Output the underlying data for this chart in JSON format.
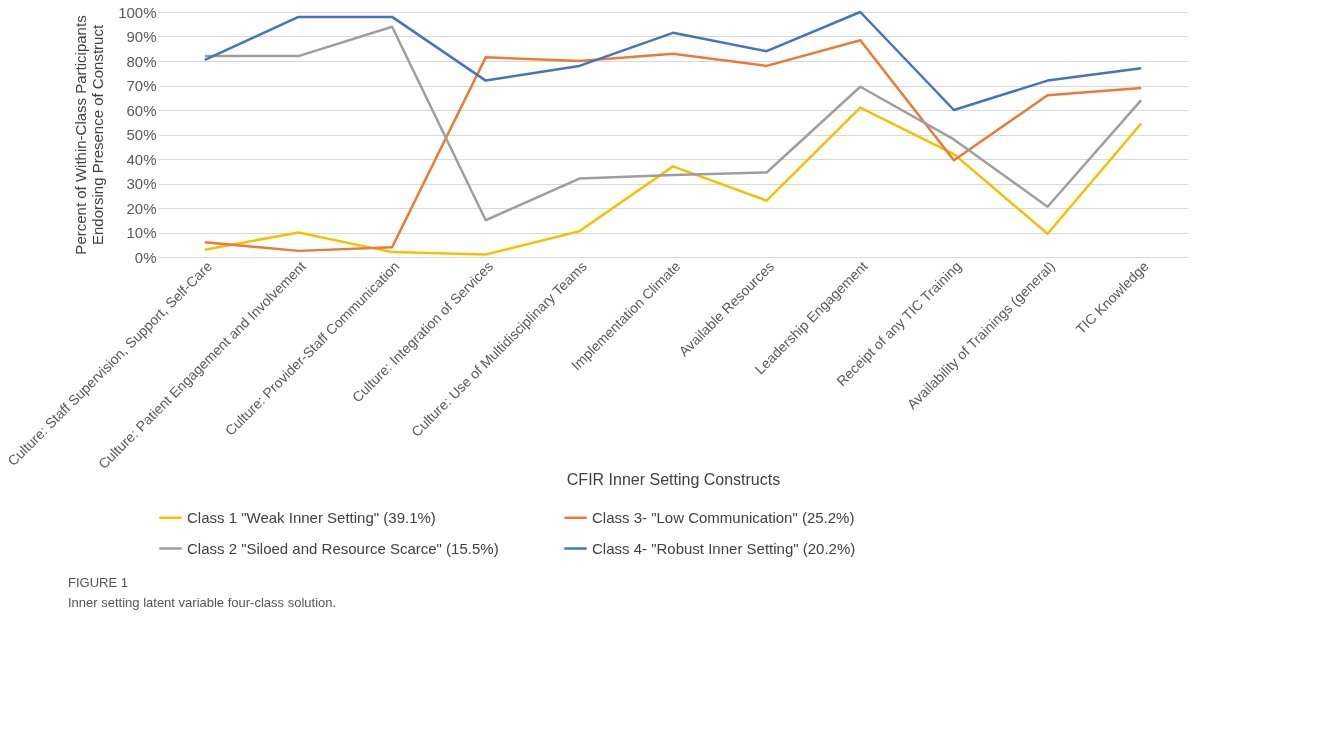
{
  "chart_data": {
    "type": "line",
    "xlabel": "CFIR Inner Setting Constructs",
    "ylabel": "Percent of Within-Class Participants Endorsing Presence of Construct",
    "categories": [
      "Culture: Staff Supervision, Support, Self-Care",
      "Culture: Patient Engagement and Involvement",
      "Culture: Provider-Staff Communication",
      "Culture: Integration of Services",
      "Culture: Use of Multidisciplinary Teams",
      "Implementation Climate",
      "Available Resources",
      "Leadership Engagement",
      "Receipt of any TIC Training",
      "Availability of Trainings (general)",
      "TIC Knowledge"
    ],
    "series": [
      {
        "name": "Class 1 \"Weak Inner Setting\" (39.1%)",
        "color": "#f5c000",
        "values": [
          3,
          10,
          2,
          1,
          10.5,
          37,
          23,
          61,
          42,
          9.5,
          54.5
        ]
      },
      {
        "name": "Class 3- \"Low Communication\" (25.2%)",
        "color": "#ea7a34",
        "values": [
          6,
          2.5,
          4,
          81.5,
          80,
          83,
          78,
          88.5,
          39.5,
          66,
          69
        ]
      },
      {
        "name": "Class 2 \"Siloed and Resource Scarce\" (15.5%)",
        "color": "#9e9e9e",
        "values": [
          82,
          82,
          94,
          15,
          32,
          33.5,
          34.5,
          69.5,
          48,
          20.5,
          64
        ]
      },
      {
        "name": "Class 4- \"Robust Inner Setting\" (20.2%)",
        "color": "#4472c4",
        "values": [
          80.5,
          98,
          98,
          72,
          78,
          91.5,
          84,
          100,
          60,
          72,
          77
        ]
      }
    ],
    "ylim": [
      0,
      100
    ],
    "yticks": [
      {
        "value": 0,
        "label": "0%"
      },
      {
        "value": 10,
        "label": "10%"
      },
      {
        "value": 20,
        "label": "20%"
      },
      {
        "value": 30,
        "label": "30%"
      },
      {
        "value": 40,
        "label": "40%"
      },
      {
        "value": 50,
        "label": "50%"
      },
      {
        "value": 60,
        "label": "60%"
      },
      {
        "value": 70,
        "label": "70%"
      },
      {
        "value": 80,
        "label": "80%"
      },
      {
        "value": 90,
        "label": "90%"
      },
      {
        "value": 100,
        "label": "100%"
      }
    ],
    "grid": "y",
    "legend": "bottom",
    "marker": "none",
    "line_style": "solid",
    "annotations": [
      "FIGURE 1",
      "Inner setting latent variable four-class solution."
    ]
  }
}
